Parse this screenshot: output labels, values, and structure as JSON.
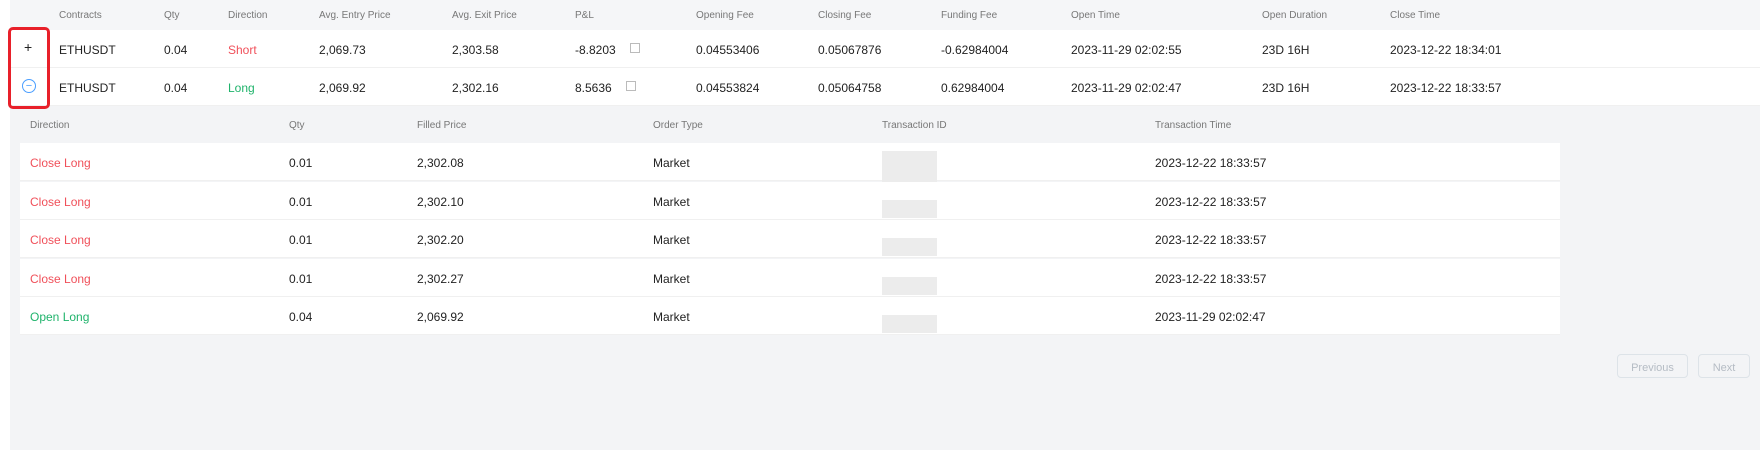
{
  "positions": {
    "columns": [
      "Contracts",
      "Qty",
      "Direction",
      "Avg. Entry Price",
      "Avg. Exit Price",
      "P&L",
      "Opening Fee",
      "Closing Fee",
      "Funding Fee",
      "Open Time",
      "Open Duration",
      "Close Time"
    ],
    "rows": [
      {
        "toggle": "+",
        "contract": "ETHUSDT",
        "qty": "0.04",
        "direction": "Short",
        "entry": "2,069.73",
        "exit": "2,303.58",
        "pnl": "-8.8203",
        "opening_fee": "0.04553406",
        "closing_fee": "0.05067876",
        "funding_fee": "-0.62984004",
        "open_time": "2023-11-29 02:02:55",
        "duration": "23D 16H",
        "close_time": "2023-12-22 18:34:01"
      },
      {
        "toggle": "−",
        "contract": "ETHUSDT",
        "qty": "0.04",
        "direction": "Long",
        "entry": "2,069.92",
        "exit": "2,302.16",
        "pnl": "8.5636",
        "opening_fee": "0.04553824",
        "closing_fee": "0.05064758",
        "funding_fee": "0.62984004",
        "open_time": "2023-11-29 02:02:47",
        "duration": "23D 16H",
        "close_time": "2023-12-22 18:33:57"
      }
    ]
  },
  "details": {
    "columns": [
      "Direction",
      "Qty",
      "Filled Price",
      "Order Type",
      "Transaction ID",
      "Transaction Time"
    ],
    "rows": [
      {
        "direction": "Close Long",
        "qty": "0.01",
        "price": "2,302.08",
        "type": "Market",
        "time": "2023-12-22 18:33:57"
      },
      {
        "direction": "Close Long",
        "qty": "0.01",
        "price": "2,302.10",
        "type": "Market",
        "time": "2023-12-22 18:33:57"
      },
      {
        "direction": "Close Long",
        "qty": "0.01",
        "price": "2,302.20",
        "type": "Market",
        "time": "2023-12-22 18:33:57"
      },
      {
        "direction": "Close Long",
        "qty": "0.01",
        "price": "2,302.27",
        "type": "Market",
        "time": "2023-12-22 18:33:57"
      },
      {
        "direction": "Open Long",
        "qty": "0.04",
        "price": "2,069.92",
        "type": "Market",
        "time": "2023-11-29 02:02:47"
      }
    ]
  },
  "pagination": {
    "previous": "Previous",
    "next": "Next"
  },
  "colors": {
    "short": "#f0505a",
    "long": "#1fb36b",
    "highlight": "#e8202a",
    "toggle_accent": "#4a9eff"
  }
}
